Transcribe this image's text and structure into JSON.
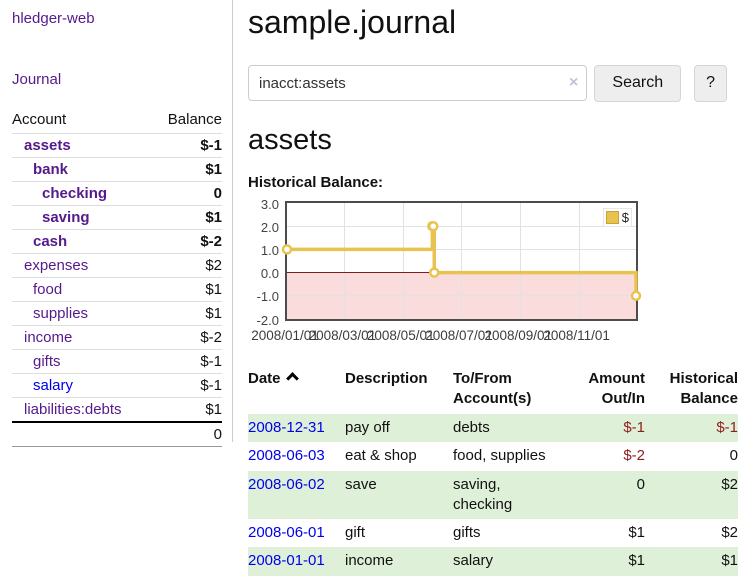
{
  "colors": {
    "link_purple": "#551A8B",
    "link_blue": "#0000EE",
    "negative": "#8f1d1d",
    "negative_muted": "#bd7070",
    "row_stripe_green": "#dff0d8",
    "series_gold": "#E9C351",
    "negative_region_pink": "#fbdcdc",
    "zero_line_red": "#7d1f1f"
  },
  "sidebar": {
    "brand": "hledger-web",
    "nav": {
      "journal": "Journal"
    },
    "table": {
      "headers": {
        "account": "Account",
        "balance": "Balance"
      },
      "accounts": [
        {
          "name": "assets",
          "indent": 1,
          "bold": true,
          "link_color": "purple",
          "balance": "$-1",
          "balance_color": "neg"
        },
        {
          "name": "bank",
          "indent": 2,
          "bold": true,
          "link_color": "purple",
          "balance": "$1",
          "balance_color": "default"
        },
        {
          "name": "checking",
          "indent": 3,
          "bold": true,
          "link_color": "purple",
          "balance": "0",
          "balance_color": "default"
        },
        {
          "name": "saving",
          "indent": 3,
          "bold": true,
          "link_color": "purple",
          "balance": "$1",
          "balance_color": "default"
        },
        {
          "name": "cash",
          "indent": 2,
          "bold": true,
          "link_color": "purple",
          "balance": "$-2",
          "balance_color": "neg"
        },
        {
          "name": "expenses",
          "indent": 1,
          "bold": false,
          "link_color": "purple",
          "balance": "$2",
          "balance_color": "default"
        },
        {
          "name": "food",
          "indent": 2,
          "bold": false,
          "link_color": "purple",
          "balance": "$1",
          "balance_color": "default"
        },
        {
          "name": "supplies",
          "indent": 2,
          "bold": false,
          "link_color": "purple",
          "balance": "$1",
          "balance_color": "default"
        },
        {
          "name": "income",
          "indent": 1,
          "bold": false,
          "link_color": "purple",
          "balance": "$-2",
          "balance_color": "neg-muted"
        },
        {
          "name": "gifts",
          "indent": 2,
          "bold": false,
          "link_color": "purple",
          "balance": "$-1",
          "balance_color": "neg-muted"
        },
        {
          "name": "salary",
          "indent": 2,
          "bold": false,
          "link_color": "blue",
          "balance": "$-1",
          "balance_color": "neg-muted"
        },
        {
          "name": "liabilities:debts",
          "indent": 1,
          "bold": false,
          "link_color": "purple",
          "balance": "$1",
          "balance_color": "default"
        }
      ],
      "total": "0"
    }
  },
  "main": {
    "title": "sample.journal",
    "search": {
      "value": "inacct:assets",
      "clear_icon": "×",
      "search_button": "Search",
      "help_button": "?"
    },
    "account_heading": "assets",
    "section_label": "Historical Balance:"
  },
  "chart_data": {
    "type": "line",
    "step": true,
    "title": "",
    "xlabel": "",
    "ylabel": "",
    "xlim": [
      "2008-01-01",
      "2008-12-31"
    ],
    "ylim": [
      -2,
      3
    ],
    "yticks": [
      {
        "value": 3,
        "label": "3.0"
      },
      {
        "value": 2,
        "label": "2.0"
      },
      {
        "value": 1,
        "label": "1.0"
      },
      {
        "value": 0,
        "label": "0.0"
      },
      {
        "value": -1,
        "label": "-1.0"
      },
      {
        "value": -2,
        "label": "-2.0"
      }
    ],
    "xticks": [
      {
        "date": "2008-01-01",
        "label": "2008/01/01"
      },
      {
        "date": "2008-03-01",
        "label": "2008/03/01"
      },
      {
        "date": "2008-05-01",
        "label": "2008/05/01"
      },
      {
        "date": "2008-07-01",
        "label": "2008/07/01"
      },
      {
        "date": "2008-09-01",
        "label": "2008/09/01"
      },
      {
        "date": "2008-11-01",
        "label": "2008/11/01"
      }
    ],
    "series": [
      {
        "name": "$",
        "color": "#E9C351",
        "points": [
          {
            "date": "2008-01-01",
            "value": 1
          },
          {
            "date": "2008-06-01",
            "value": 2
          },
          {
            "date": "2008-06-02",
            "value": 2
          },
          {
            "date": "2008-06-03",
            "value": 0
          },
          {
            "date": "2008-12-31",
            "value": -1
          }
        ]
      }
    ],
    "legend": {
      "label": "$",
      "position": "top-right"
    },
    "negative_region_shaded": true,
    "grid": true
  },
  "register": {
    "columns": [
      {
        "id": "date",
        "lines": [
          "Date"
        ],
        "align": "left",
        "sort": "ascending"
      },
      {
        "id": "description",
        "lines": [
          "Description"
        ],
        "align": "left"
      },
      {
        "id": "accounts",
        "lines": [
          "To/From",
          "Account(s)"
        ],
        "align": "left"
      },
      {
        "id": "amount",
        "lines": [
          "Amount",
          "Out/In"
        ],
        "align": "right"
      },
      {
        "id": "balance",
        "lines": [
          "Historical",
          "Balance"
        ],
        "align": "right"
      }
    ],
    "rows": [
      {
        "date": "2008-12-31",
        "description": "pay off",
        "accounts": "debts",
        "amount": "$-1",
        "balance": "$-1"
      },
      {
        "date": "2008-06-03",
        "description": "eat & shop",
        "accounts": "food, supplies",
        "amount": "$-2",
        "balance": "0"
      },
      {
        "date": "2008-06-02",
        "description": "save",
        "accounts": "saving, checking",
        "amount": "0",
        "balance": "$2"
      },
      {
        "date": "2008-06-01",
        "description": "gift",
        "accounts": "gifts",
        "amount": "$1",
        "balance": "$2"
      },
      {
        "date": "2008-01-01",
        "description": "income",
        "accounts": "salary",
        "amount": "$1",
        "balance": "$1"
      }
    ]
  }
}
